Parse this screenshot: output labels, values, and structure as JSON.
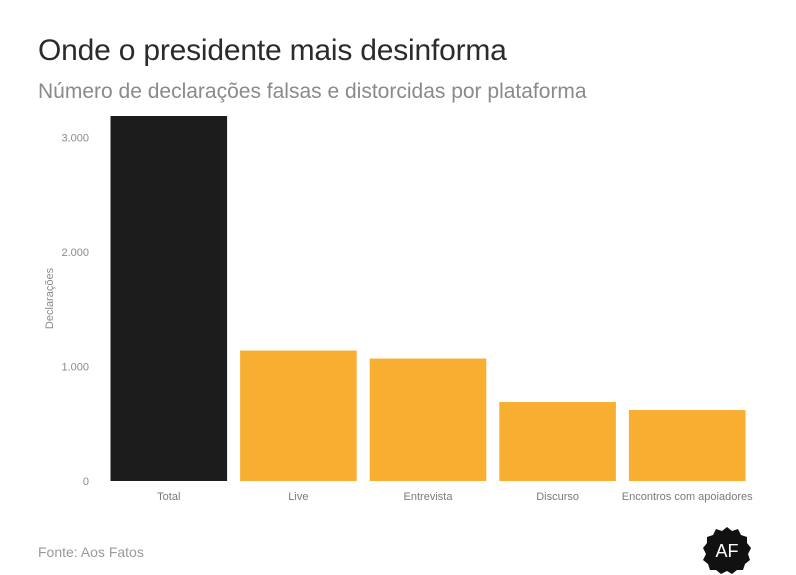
{
  "header": {
    "title": "Onde o presidente mais desinforma",
    "subtitle": "Número de declarações falsas e distorcidas por plataforma"
  },
  "footer": {
    "source": "Fonte: Aos Fatos",
    "logo_text": "AF"
  },
  "colors": {
    "highlight": "#1c1c1c",
    "bars": "#f7ae31",
    "axis_text": "#8a8a8a"
  },
  "chart_data": {
    "type": "bar",
    "categories": [
      "Total",
      "Live",
      "Entrevista",
      "Discurso",
      "Encontros com apoiadores"
    ],
    "values": [
      3190,
      1140,
      1070,
      690,
      620
    ],
    "ylabel": "Declarações",
    "ylim": [
      0,
      3190
    ],
    "yticks": [
      0,
      1000,
      2000,
      3000
    ],
    "ytick_labels": [
      "0",
      "1.000",
      "2.000",
      "3.000"
    ],
    "highlight_index": 0,
    "grid": false
  }
}
